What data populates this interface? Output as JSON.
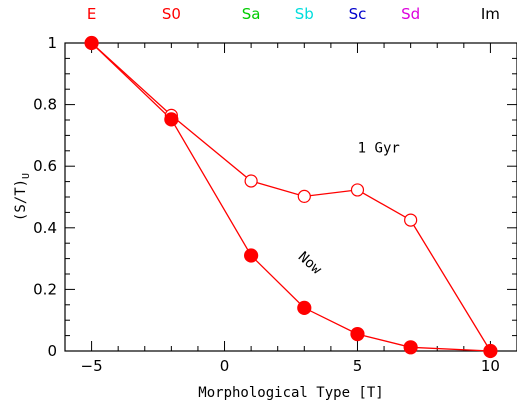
{
  "chart_data": {
    "type": "line",
    "xlabel": "Morphological Type [T]",
    "ylabel_main": "(S/T)",
    "ylabel_sub": "U",
    "xlim": [
      -6,
      11
    ],
    "ylim": [
      0,
      1
    ],
    "xticks": [
      -5,
      0,
      5,
      10
    ],
    "xtick_labels": [
      "−5",
      "0",
      "5",
      "10"
    ],
    "yticks": [
      0,
      0.2,
      0.4,
      0.6,
      0.8,
      1
    ],
    "ytick_labels": [
      "0",
      "0.2",
      "0.4",
      "0.6",
      "0.8",
      "1"
    ],
    "series": [
      {
        "name": "1 Gyr",
        "marker": "open-circle",
        "color": "#ff0000",
        "x": [
          -5,
          -2,
          1,
          3,
          5,
          7,
          10
        ],
        "y": [
          1.0,
          0.765,
          0.552,
          0.502,
          0.523,
          0.425,
          0.0
        ]
      },
      {
        "name": "Now",
        "marker": "filled-circle",
        "color": "#ff0000",
        "x": [
          -5,
          -2,
          1,
          3,
          5,
          7,
          10
        ],
        "y": [
          1.0,
          0.752,
          0.31,
          0.14,
          0.055,
          0.012,
          0.0
        ]
      }
    ],
    "annotations": [
      {
        "text": "1 Gyr",
        "x": 5.8,
        "y": 0.645,
        "rotate": 0
      },
      {
        "text": "Now",
        "x": 3.1,
        "y": 0.275,
        "rotate": 42
      }
    ],
    "type_labels": [
      {
        "text": "E",
        "x": -5,
        "color": "#ff0000"
      },
      {
        "text": "S0",
        "x": -2,
        "color": "#ff0000"
      },
      {
        "text": "Sa",
        "x": 1,
        "color": "#00cc00"
      },
      {
        "text": "Sb",
        "x": 3,
        "color": "#00dddd"
      },
      {
        "text": "Sc",
        "x": 5,
        "color": "#0000cc"
      },
      {
        "text": "Sd",
        "x": 7,
        "color": "#dd00dd"
      },
      {
        "text": "Im",
        "x": 10,
        "color": "#000000"
      }
    ]
  }
}
